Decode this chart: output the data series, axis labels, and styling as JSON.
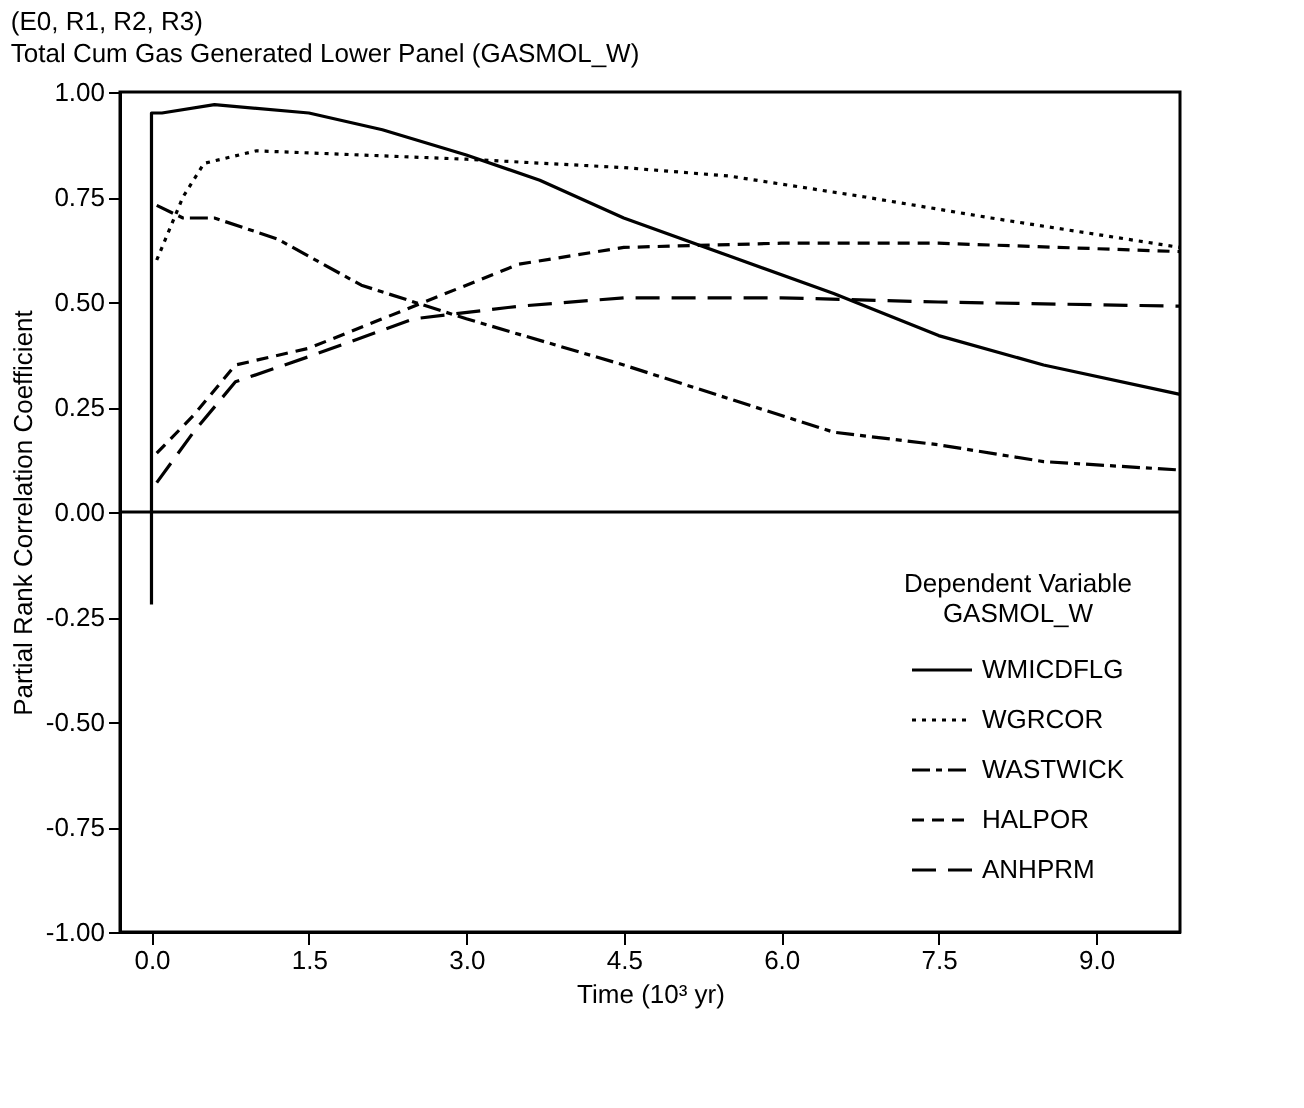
{
  "chart_data": {
    "type": "line",
    "title": "(E0, R1, R2, R3)",
    "subtitle": "Total Cum Gas Generated Lower Panel (GASMOL_W)",
    "xlabel": "Time (10³ yr)",
    "ylabel": "Partial Rank Correlation Coefficient",
    "legend_title": "Dependent Variable GASMOL_W",
    "xlim": [
      -0.3,
      9.8
    ],
    "ylim": [
      -1,
      1
    ],
    "xticks": [
      {
        "value": 0,
        "label": "0.0"
      },
      {
        "value": 1.5,
        "label": "1.5"
      },
      {
        "value": 3,
        "label": "3.0"
      },
      {
        "value": 4.5,
        "label": "4.5"
      },
      {
        "value": 6,
        "label": "6.0"
      },
      {
        "value": 7.5,
        "label": "7.5"
      },
      {
        "value": 9,
        "label": "9.0"
      }
    ],
    "yticks": [
      {
        "value": -1,
        "label": "-1.00"
      },
      {
        "value": -0.75,
        "label": "-0.75"
      },
      {
        "value": -0.5,
        "label": "-0.50"
      },
      {
        "value": -0.25,
        "label": "-0.25"
      },
      {
        "value": 0,
        "label": "0.00"
      },
      {
        "value": 0.25,
        "label": "0.25"
      },
      {
        "value": 0.5,
        "label": "0.50"
      },
      {
        "value": 0.75,
        "label": "0.75"
      },
      {
        "value": 1,
        "label": "1.00"
      }
    ],
    "grid": false,
    "legend": "bottom right",
    "marker": "none",
    "ref_lines": [
      {
        "axis": "y",
        "value": 0,
        "color": "#000000",
        "line_style": "solid"
      }
    ],
    "series": [
      {
        "name": "WMICDFLG",
        "color": "#000000",
        "line_style": "solid",
        "x": [
          0,
          0,
          0.1,
          0.6,
          1.5,
          2.2,
          3.0,
          3.7,
          4.5,
          5.5,
          6.5,
          7.5,
          8.5,
          9.8
        ],
        "values": [
          -0.22,
          0.95,
          0.95,
          0.97,
          0.95,
          0.91,
          0.85,
          0.79,
          0.7,
          0.61,
          0.52,
          0.42,
          0.35,
          0.28
        ]
      },
      {
        "name": "WGRCOR",
        "color": "#000000",
        "line_style": "dotted",
        "x": [
          0.05,
          0.3,
          0.5,
          1.0,
          2.0,
          3.0,
          4.5,
          5.5,
          6.8,
          8.0,
          9.8
        ],
        "values": [
          0.6,
          0.75,
          0.83,
          0.86,
          0.85,
          0.84,
          0.82,
          0.8,
          0.75,
          0.7,
          0.63
        ]
      },
      {
        "name": "WASTWICK",
        "color": "#000000",
        "line_style": "dashed",
        "x": [
          0.05,
          0.3,
          0.6,
          1.2,
          2.0,
          3.0,
          4.5,
          5.5,
          6.5,
          7.5,
          8.5,
          9.8
        ],
        "values": [
          0.73,
          0.7,
          0.7,
          0.65,
          0.54,
          0.46,
          0.35,
          0.27,
          0.19,
          0.16,
          0.12,
          0.1
        ]
      },
      {
        "name": "HALPOR",
        "color": "#000000",
        "line_style": "dashed",
        "x": [
          0.05,
          0.4,
          0.8,
          1.5,
          2.5,
          3.5,
          4.5,
          6.0,
          7.5,
          9.8
        ],
        "values": [
          0.14,
          0.23,
          0.35,
          0.39,
          0.49,
          0.59,
          0.63,
          0.64,
          0.64,
          0.62
        ]
      },
      {
        "name": "ANHPRM",
        "color": "#000000",
        "line_style": "dashed",
        "x": [
          0.05,
          0.4,
          0.8,
          1.5,
          2.5,
          3.5,
          4.5,
          6.0,
          7.5,
          9.8
        ],
        "values": [
          0.07,
          0.19,
          0.31,
          0.37,
          0.46,
          0.49,
          0.51,
          0.51,
          0.5,
          0.49
        ]
      }
    ]
  }
}
